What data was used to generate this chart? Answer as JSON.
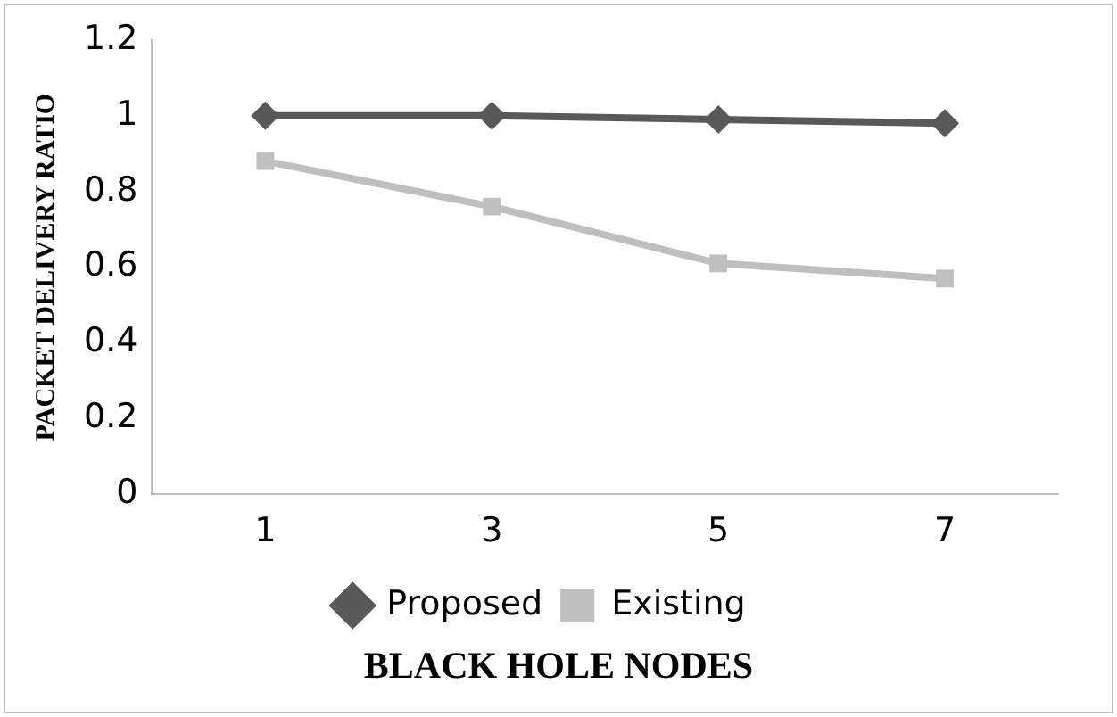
{
  "chart_data": {
    "type": "line",
    "xlabel": "BLACK HOLE NODES",
    "ylabel": "PACKET DELIVERY RATIO",
    "categories": [
      "1",
      "3",
      "5",
      "7"
    ],
    "series": [
      {
        "name": "Proposed",
        "color": "#595959",
        "marker": "diamond",
        "values": [
          1,
          1,
          0.99,
          0.98
        ]
      },
      {
        "name": "Existing",
        "color": "#bfbfbf",
        "marker": "square",
        "values": [
          0.88,
          0.76,
          0.61,
          0.57
        ]
      }
    ],
    "ylim": [
      0,
      1.2
    ],
    "yticks": [
      0,
      0.2,
      0.4,
      0.6,
      0.8,
      1,
      1.2
    ],
    "grid": false,
    "legend": "bottom"
  }
}
